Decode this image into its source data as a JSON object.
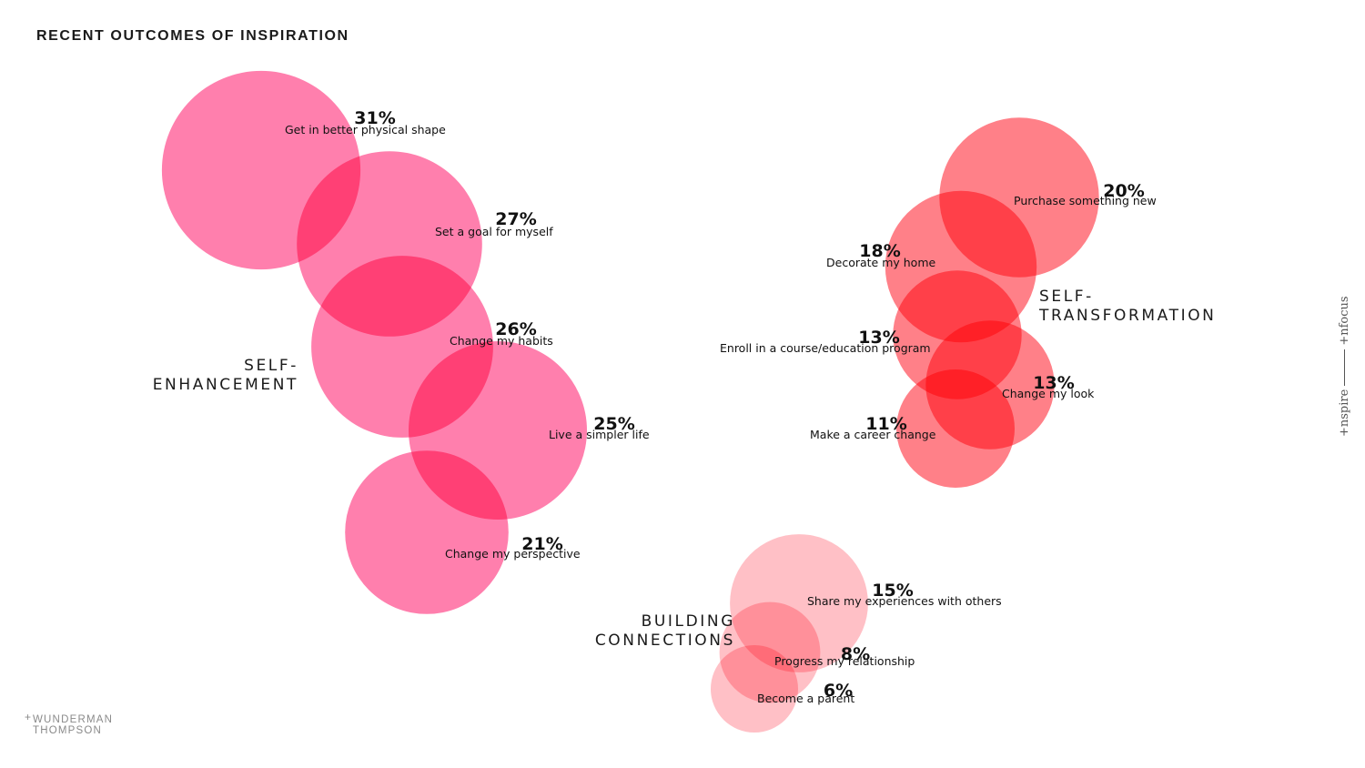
{
  "title": "RECENT OUTCOMES OF INSPIRATION",
  "logo": {
    "line1": "WUNDERMAN",
    "line2": "THOMPSON",
    "mark": "+"
  },
  "side_brand": {
    "left": "+nspire",
    "right": "+nfocus"
  },
  "colors": {
    "self_enhancement": "#ff7fad",
    "self_transformation": "#ff8088",
    "building_connections": "#ffc0c6"
  },
  "chart_data": {
    "type": "bubble",
    "title": "RECENT OUTCOMES OF INSPIRATION",
    "unit": "%",
    "groups": [
      {
        "name": "SELF-\nENHANCEMENT",
        "name_lines": [
          "SELF-",
          "ENHANCEMENT"
        ],
        "color": "#ff7fad",
        "items": [
          {
            "label": "Get in better physical shape",
            "value": 31,
            "display": "31%"
          },
          {
            "label": "Set a goal for myself",
            "value": 27,
            "display": "27%"
          },
          {
            "label": "Change my habits",
            "value": 26,
            "display": "26%"
          },
          {
            "label": "Live a simpler life",
            "value": 25,
            "display": "25%"
          },
          {
            "label": "Change my perspective",
            "value": 21,
            "display": "21%"
          }
        ]
      },
      {
        "name": "SELF-\nTRANSFORMATION",
        "name_lines": [
          "SELF-",
          "TRANSFORMATION"
        ],
        "color": "#ff8088",
        "items": [
          {
            "label": "Purchase something new",
            "value": 20,
            "display": "20%"
          },
          {
            "label": "Decorate my home",
            "value": 18,
            "display": "18%"
          },
          {
            "label": "Enroll in a course/education program",
            "value": 13,
            "display": "13%"
          },
          {
            "label": "Change my look",
            "value": 13,
            "display": "13%"
          },
          {
            "label": "Make a career change",
            "value": 11,
            "display": "11%"
          }
        ]
      },
      {
        "name": "BUILDING\nCONNECTIONS",
        "name_lines": [
          "BUILDING",
          "CONNECTIONS"
        ],
        "color": "#ffc0c6",
        "items": [
          {
            "label": "Share my experiences with others",
            "value": 15,
            "display": "15%"
          },
          {
            "label": "Progress my relationship",
            "value": 8,
            "display": "8%"
          },
          {
            "label": "Become a parent",
            "value": 6,
            "display": "6%"
          }
        ]
      }
    ]
  }
}
